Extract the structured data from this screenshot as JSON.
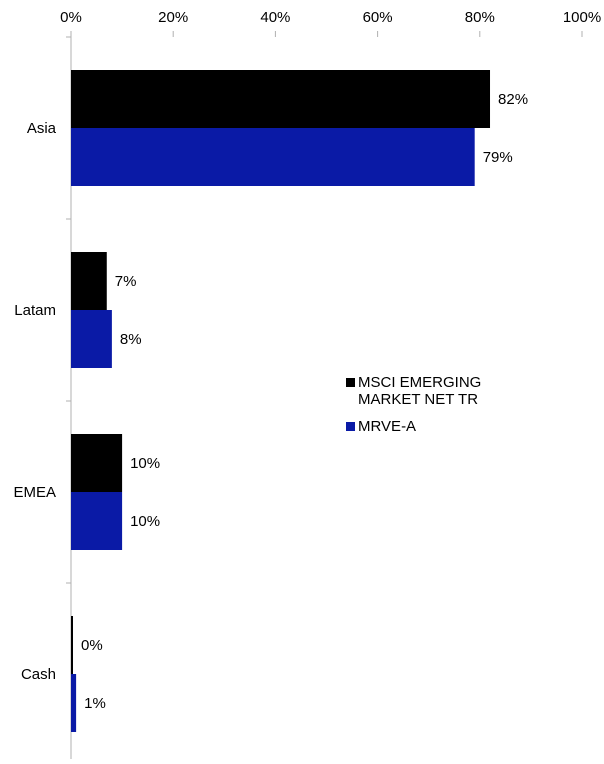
{
  "chart_data": {
    "type": "bar",
    "orientation": "horizontal",
    "xlim": [
      0,
      100
    ],
    "x_ticks": [
      0,
      20,
      40,
      60,
      80,
      100
    ],
    "x_tick_labels": [
      "0%",
      "20%",
      "40%",
      "60%",
      "80%",
      "100%"
    ],
    "x_axis_position": "top",
    "grid": false,
    "categories": [
      "Asia",
      "Latam",
      "EMEA",
      "Cash"
    ],
    "series": [
      {
        "name": "MSCI EMERGING MARKET NET TR",
        "color": "#000000",
        "values": [
          82,
          7,
          10,
          0
        ],
        "labels": [
          "82%",
          "7%",
          "10%",
          "0%"
        ]
      },
      {
        "name": "MRVE-A",
        "color": "#0a1aa6",
        "values": [
          79,
          8,
          10,
          1
        ],
        "labels": [
          "79%",
          "8%",
          "10%",
          "1%"
        ]
      }
    ],
    "legend": {
      "position": "right-middle",
      "entries": [
        {
          "lines": [
            "MSCI EMERGING",
            "MARKET NET TR"
          ],
          "color": "#000000"
        },
        {
          "lines": [
            "MRVE-A"
          ],
          "color": "#0a1aa6"
        }
      ]
    }
  }
}
